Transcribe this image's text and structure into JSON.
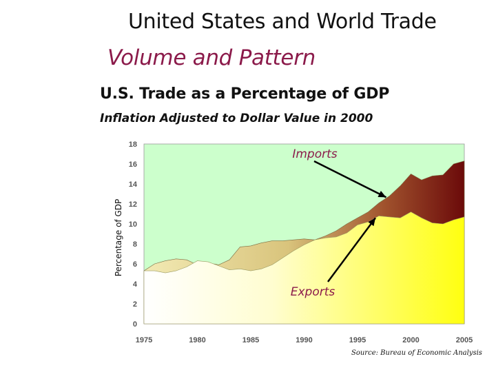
{
  "slide": {
    "title": "United States and World Trade",
    "subtitle": "Volume and Pattern",
    "chart_heading": "U.S. Trade as a Percentage of GDP",
    "chart_subheading": "Inflation Adjusted to Dollar Value in 2000",
    "source": "Source: Bureau of Economic Analysis"
  },
  "colors": {
    "plot_background": "#ccffcc",
    "imports_light": "#e8d88e",
    "imports_dark": "#6b0a0a",
    "exports_light": "#ffffe6",
    "exports_dark": "#ffff00",
    "title_accent": "#8b1a4a"
  },
  "chart_data": {
    "type": "area",
    "ylabel": "Percentage of GDP",
    "xlabel": "",
    "xlim": [
      1975,
      2005
    ],
    "ylim": [
      0,
      18
    ],
    "yticks": [
      0,
      2,
      4,
      6,
      8,
      10,
      12,
      14,
      16,
      18
    ],
    "xticks": [
      1975,
      1980,
      1985,
      1990,
      1995,
      2000,
      2005
    ],
    "x": [
      1975,
      1976,
      1977,
      1978,
      1979,
      1980,
      1981,
      1982,
      1983,
      1984,
      1985,
      1986,
      1987,
      1988,
      1989,
      1990,
      1991,
      1992,
      1993,
      1994,
      1995,
      1996,
      1997,
      1998,
      1999,
      2000,
      2001,
      2002,
      2003,
      2004,
      2005
    ],
    "series": [
      {
        "name": "Imports",
        "values": [
          5.3,
          6.0,
          6.3,
          6.5,
          6.4,
          5.9,
          6.1,
          5.9,
          6.4,
          7.7,
          7.8,
          8.1,
          8.3,
          8.3,
          8.4,
          8.5,
          8.4,
          8.8,
          9.3,
          10.0,
          10.6,
          11.2,
          12.1,
          12.8,
          13.8,
          15.0,
          14.4,
          14.8,
          14.9,
          16.0,
          16.3
        ]
      },
      {
        "name": "Exports",
        "values": [
          5.3,
          5.3,
          5.1,
          5.3,
          5.7,
          6.3,
          6.2,
          5.8,
          5.4,
          5.5,
          5.3,
          5.5,
          5.9,
          6.6,
          7.3,
          7.9,
          8.4,
          8.6,
          8.7,
          9.1,
          9.9,
          10.2,
          10.8,
          10.7,
          10.6,
          11.2,
          10.6,
          10.1,
          10.0,
          10.4,
          10.7
        ]
      }
    ],
    "annotations": [
      {
        "text": "Imports",
        "points_to": [
          1998,
          12.8
        ]
      },
      {
        "text": "Exports",
        "points_to": [
          1997,
          10.8
        ]
      }
    ],
    "grid": false,
    "legend": "none"
  }
}
